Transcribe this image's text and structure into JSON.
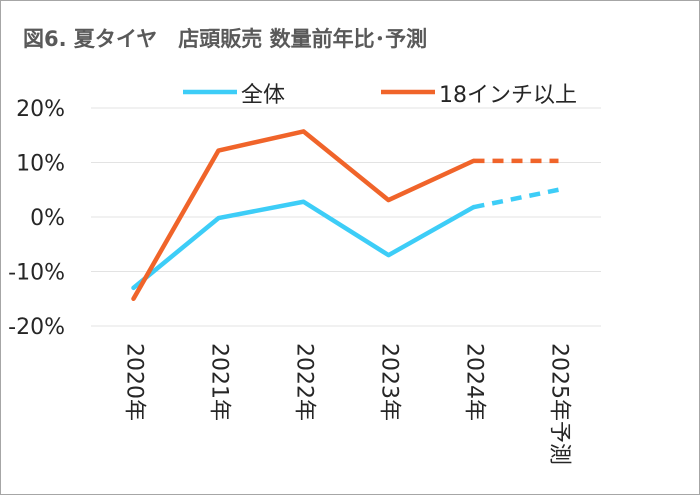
{
  "title": "図6. 夏タイヤ　店頭販売 数量前年比･予測",
  "chart_data": {
    "type": "line",
    "title": "図6. 夏タイヤ　店頭販売 数量前年比･予測",
    "categories": [
      "2020年",
      "2021年",
      "2022年",
      "2023年",
      "2024年",
      "2025年予測"
    ],
    "ylim": [
      -20,
      20
    ],
    "yticks": [
      20,
      10,
      0,
      -10,
      -20
    ],
    "ytick_labels": [
      "20%",
      "10%",
      "0%",
      "-10%",
      "-20%"
    ],
    "grid": true,
    "legend": "top",
    "forecast_from_index": 4,
    "series": [
      {
        "name": "全体",
        "color": "#3dcdf7",
        "values": [
          -13,
          -0.2,
          2.8,
          -7,
          1.8,
          5
        ]
      },
      {
        "name": "18インチ以上",
        "color": "#f0642a",
        "values": [
          -15,
          12.2,
          15.7,
          3.1,
          10.3,
          10.3
        ]
      }
    ]
  }
}
